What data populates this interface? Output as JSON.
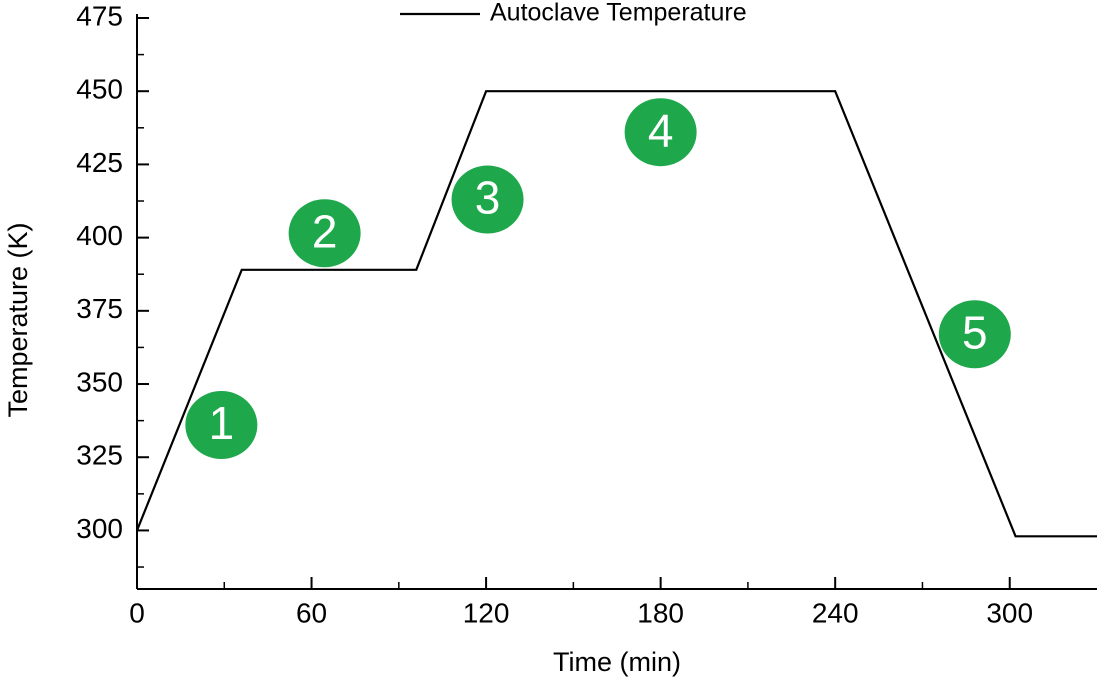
{
  "chart_data": {
    "type": "line",
    "x_label": "Time (min)",
    "y_label": "Temperature (K)",
    "series": [
      {
        "name": "Autoclave Temperature",
        "color": "#000000",
        "x": [
          0,
          36,
          96,
          120,
          240,
          302,
          330
        ],
        "values": [
          300,
          389,
          389,
          450,
          450,
          298,
          298
        ]
      }
    ],
    "xlim": [
      0,
      330
    ],
    "xticks": [
      0,
      60,
      120,
      180,
      240,
      300
    ],
    "xminorticks": [
      30,
      90,
      150,
      210,
      270
    ],
    "ylim": [
      280,
      475
    ],
    "yticks": [
      300,
      325,
      350,
      375,
      400,
      425,
      450,
      475
    ],
    "yminorticks": [
      287.5,
      312.5,
      337.5,
      362.5,
      387.5,
      412.5,
      437.5,
      462.5
    ],
    "legend": "upper center",
    "annotations": [
      {
        "text": "1",
        "x": 29,
        "y": 336,
        "color": "#1fa84b"
      },
      {
        "text": "2",
        "x": 64.5,
        "y": 401.5,
        "color": "#1fa84b"
      },
      {
        "text": "3",
        "x": 120.5,
        "y": 413,
        "color": "#1fa84b"
      },
      {
        "text": "4",
        "x": 180,
        "y": 436,
        "color": "#1fa84b"
      },
      {
        "text": "5",
        "x": 288,
        "y": 367,
        "color": "#1fa84b"
      }
    ]
  }
}
